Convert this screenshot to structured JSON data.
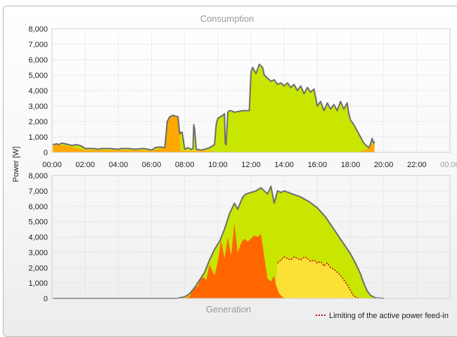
{
  "colors": {
    "pv_direct": "#c8e600",
    "grid_purchase": "#ffa800",
    "battery_discharge": "#f0b400",
    "self_consumption": "#ff6600",
    "feed_in": "#fbe135",
    "outline": "#6e6e6e",
    "limit_line": "#cc0000"
  },
  "chart_data": [
    {
      "type": "area",
      "title": "Consumption",
      "ylabel": "Power [W]",
      "xlabel": "",
      "x_unit": "hours",
      "xlim": [
        0,
        24
      ],
      "ylim": [
        0,
        8000
      ],
      "grid": true,
      "x_ticks": [
        {
          "label": "00:00",
          "v": 0
        },
        {
          "label": "02:00",
          "v": 2
        },
        {
          "label": "04:00",
          "v": 4
        },
        {
          "label": "06:00",
          "v": 6
        },
        {
          "label": "08:00",
          "v": 8
        },
        {
          "label": "10:00",
          "v": 10
        },
        {
          "label": "12:00",
          "v": 12
        },
        {
          "label": "14:00",
          "v": 14
        },
        {
          "label": "16:00",
          "v": 16
        },
        {
          "label": "18:00",
          "v": 18
        },
        {
          "label": "20:00",
          "v": 20
        },
        {
          "label": "22:00",
          "v": 22
        },
        {
          "label": "00:00",
          "v": 24,
          "muted": true
        }
      ],
      "y_ticks": [
        {
          "label": "0",
          "v": 0
        },
        {
          "label": "1,000",
          "v": 1000
        },
        {
          "label": "2,000",
          "v": 2000
        },
        {
          "label": "3,000",
          "v": 3000
        },
        {
          "label": "4,000",
          "v": 4000
        },
        {
          "label": "5,000",
          "v": 5000
        },
        {
          "label": "6,000",
          "v": 6000
        },
        {
          "label": "7,000",
          "v": 7000
        },
        {
          "label": "8,000",
          "v": 8000
        }
      ],
      "total": {
        "x": [
          0.05,
          0.3,
          0.4,
          0.6,
          0.8,
          1.0,
          1.2,
          1.5,
          1.8,
          2.0,
          2.5,
          2.8,
          3.0,
          3.5,
          4.0,
          4.2,
          4.6,
          5.0,
          5.5,
          5.8,
          6.0,
          6.1,
          6.2,
          6.5,
          6.8,
          6.95,
          7.1,
          7.3,
          7.6,
          7.7,
          7.75,
          7.8,
          7.85,
          8.0,
          8.2,
          8.4,
          8.5,
          8.55,
          8.6,
          8.7,
          9.0,
          9.2,
          9.5,
          9.8,
          9.9,
          10.0,
          10.3,
          10.4,
          10.45,
          10.5,
          10.6,
          10.7,
          10.8,
          11.0,
          11.5,
          11.9,
          12.0,
          12.1,
          12.3,
          12.5,
          12.7,
          12.8,
          13.0,
          13.2,
          13.4,
          13.6,
          13.8,
          14.0,
          14.2,
          14.4,
          14.6,
          14.8,
          15.0,
          15.2,
          15.4,
          15.6,
          15.8,
          16.0,
          16.2,
          16.4,
          16.6,
          16.8,
          17.0,
          17.2,
          17.4,
          17.6,
          17.8,
          17.9,
          18.0,
          18.2,
          18.4,
          18.6,
          18.8,
          19.0,
          19.1,
          19.2,
          19.3,
          19.4,
          19.45
        ],
        "y": [
          500,
          550,
          500,
          600,
          550,
          500,
          450,
          500,
          400,
          250,
          250,
          200,
          250,
          250,
          200,
          250,
          250,
          200,
          250,
          200,
          150,
          200,
          300,
          350,
          300,
          2000,
          2300,
          2400,
          2300,
          1200,
          1300,
          1250,
          1300,
          200,
          300,
          200,
          250,
          1800,
          1500,
          200,
          150,
          200,
          300,
          500,
          1800,
          2200,
          2400,
          2500,
          600,
          500,
          2600,
          2700,
          2700,
          2600,
          2700,
          2700,
          5200,
          5500,
          5100,
          5700,
          5500,
          5000,
          4800,
          4600,
          4700,
          4400,
          4500,
          4300,
          4500,
          4200,
          4400,
          4000,
          4300,
          3800,
          4200,
          3900,
          4100,
          3000,
          3300,
          2700,
          3200,
          2800,
          3100,
          2700,
          3300,
          2800,
          3200,
          2500,
          2100,
          1800,
          1400,
          1000,
          600,
          400,
          300,
          500,
          900,
          600,
          700
        ]
      },
      "purchase": {
        "x": [
          0.05,
          0.4,
          1.0,
          2.0,
          3.0,
          4.0,
          5.0,
          6.0,
          6.5,
          6.8,
          6.95,
          7.1,
          7.3,
          7.6,
          7.7,
          7.75,
          7.8,
          8.0,
          8.5,
          9.0,
          9.5,
          10.0,
          11.0,
          12.0,
          13.0,
          14.0,
          15.0,
          16.0,
          17.0,
          18.0,
          18.5,
          18.8,
          19.0,
          19.1,
          19.2,
          19.3,
          19.4,
          19.45
        ],
        "y": [
          450,
          500,
          400,
          150,
          150,
          150,
          150,
          100,
          250,
          250,
          2000,
          2300,
          2400,
          2300,
          1100,
          100,
          100,
          100,
          100,
          100,
          100,
          0,
          0,
          0,
          0,
          0,
          0,
          0,
          0,
          0,
          50,
          100,
          200,
          400,
          550,
          500,
          600,
          600
        ]
      }
    },
    {
      "type": "area",
      "title": "Generation",
      "ylabel": "Power [W]",
      "xlabel": "",
      "x_unit": "hours",
      "xlim": [
        0,
        24
      ],
      "ylim": [
        0,
        8000
      ],
      "grid": true,
      "x_ticks": [
        {
          "label": "",
          "v": 0
        },
        {
          "label": "",
          "v": 2
        },
        {
          "label": "",
          "v": 4
        },
        {
          "label": "",
          "v": 6
        },
        {
          "label": "",
          "v": 8
        },
        {
          "label": "",
          "v": 10
        },
        {
          "label": "",
          "v": 12
        },
        {
          "label": "",
          "v": 14
        },
        {
          "label": "",
          "v": 16
        },
        {
          "label": "",
          "v": 18
        },
        {
          "label": "",
          "v": 20
        },
        {
          "label": "",
          "v": 22
        },
        {
          "label": "",
          "v": 24
        }
      ],
      "y_ticks": [
        {
          "label": "0",
          "v": 0
        },
        {
          "label": "1,000",
          "v": 1000
        },
        {
          "label": "2,000",
          "v": 2000
        },
        {
          "label": "3,000",
          "v": 3000
        },
        {
          "label": "4,000",
          "v": 4000
        },
        {
          "label": "5,000",
          "v": 5000
        },
        {
          "label": "6,000",
          "v": 6000
        },
        {
          "label": "7,000",
          "v": 7000
        },
        {
          "label": "8,000",
          "v": 8000
        }
      ],
      "total": {
        "x": [
          0.05,
          7.5,
          8.0,
          8.3,
          8.6,
          8.9,
          9.2,
          9.5,
          9.8,
          10.1,
          10.4,
          10.7,
          11.0,
          11.2,
          11.5,
          11.7,
          12.0,
          12.3,
          12.6,
          13.0,
          13.2,
          13.4,
          13.6,
          13.8,
          14.0,
          14.5,
          15.0,
          15.5,
          16.0,
          16.5,
          17.0,
          17.5,
          18.0,
          18.3,
          18.6,
          18.8,
          19.0,
          19.2,
          19.5,
          20.0
        ],
        "y": [
          0,
          0,
          100,
          300,
          700,
          1200,
          1700,
          2500,
          3200,
          3700,
          4500,
          5500,
          6200,
          5800,
          6600,
          6800,
          6900,
          7000,
          7200,
          6800,
          7300,
          6200,
          7000,
          6900,
          7000,
          6800,
          6600,
          6300,
          5900,
          5300,
          4500,
          3700,
          2900,
          2300,
          1600,
          1000,
          500,
          200,
          30,
          0
        ]
      },
      "self_consumption": {
        "x": [
          0.05,
          8.0,
          8.3,
          8.5,
          8.8,
          9.0,
          9.3,
          9.5,
          9.8,
          10.0,
          10.2,
          10.4,
          10.6,
          10.8,
          11.0,
          11.2,
          11.4,
          11.6,
          11.8,
          12.0,
          12.2,
          12.4,
          12.6,
          12.8,
          12.9,
          13.0,
          13.2,
          13.4,
          13.5,
          13.7,
          14.0
        ],
        "y": [
          0,
          0,
          150,
          1400,
          800,
          1600,
          1200,
          2200,
          1500,
          2400,
          3800,
          2600,
          4000,
          2800,
          4900,
          3000,
          3600,
          3900,
          3700,
          3900,
          4100,
          4000,
          4200,
          2700,
          2000,
          1300,
          1100,
          1500,
          900,
          300,
          0
        ]
      },
      "limit_line": {
        "x": [
          13.6,
          13.8,
          14.0,
          14.2,
          14.4,
          14.6,
          14.8,
          15.0,
          15.2,
          15.4,
          15.6,
          15.8,
          16.0,
          16.2,
          16.4,
          16.6,
          16.8,
          17.0,
          17.2,
          17.4,
          17.6,
          17.8,
          18.0,
          18.2,
          18.5
        ],
        "y": [
          2300,
          2500,
          2700,
          2600,
          2500,
          2700,
          2600,
          2500,
          2700,
          2600,
          2400,
          2500,
          2300,
          2400,
          2100,
          2300,
          2000,
          1900,
          1700,
          1500,
          1200,
          900,
          500,
          150,
          0
        ]
      },
      "legend": "Limiting of the active power feed-in",
      "legend_position": "bottom-right"
    }
  ]
}
